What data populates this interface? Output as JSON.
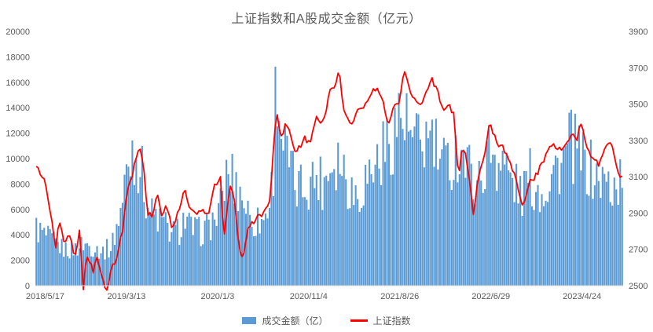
{
  "title": "上证指数和A股成交金额（亿元）",
  "chart_data": {
    "type": "bar",
    "subtype": "combo-bar-line-dual-axis",
    "title": "上证指数和A股成交金额（亿元）",
    "grid": false,
    "legend_position": "bottom",
    "samples": 300,
    "line_noise": 34,
    "bar_noise": 0.56,
    "bar_cap": 17400,
    "left_axis": {
      "min": 0,
      "max": 20000,
      "step": 2000
    },
    "right_axis": {
      "min": 2500,
      "max": 3900,
      "step": 200
    },
    "x_ticks": [
      {
        "label": "2018/5/17",
        "f": 0.0
      },
      {
        "label": "2019/3/13",
        "f": 0.155
      },
      {
        "label": "2020/1/3",
        "f": 0.31
      },
      {
        "label": "2020/11/4",
        "f": 0.465
      },
      {
        "label": "2021/8/26",
        "f": 0.62
      },
      {
        "label": "2022/6/29",
        "f": 0.775
      },
      {
        "label": "2023/4/24",
        "f": 0.93
      }
    ],
    "series": [
      {
        "name": "成交金额（亿）",
        "type": "bar",
        "axis": "left",
        "color": "#5B9BD5",
        "anchors": [
          [
            0.0,
            4600
          ],
          [
            0.016,
            3900
          ],
          [
            0.031,
            3400
          ],
          [
            0.047,
            2900
          ],
          [
            0.062,
            2800
          ],
          [
            0.082,
            3300
          ],
          [
            0.1,
            3000
          ],
          [
            0.115,
            2700
          ],
          [
            0.13,
            3100
          ],
          [
            0.14,
            5000
          ],
          [
            0.148,
            6500
          ],
          [
            0.156,
            9200
          ],
          [
            0.165,
            10800
          ],
          [
            0.177,
            9800
          ],
          [
            0.184,
            8200
          ],
          [
            0.19,
            6500
          ],
          [
            0.199,
            5600
          ],
          [
            0.21,
            5200
          ],
          [
            0.222,
            4700
          ],
          [
            0.233,
            4100
          ],
          [
            0.245,
            4400
          ],
          [
            0.253,
            5300
          ],
          [
            0.264,
            4500
          ],
          [
            0.28,
            4200
          ],
          [
            0.295,
            4700
          ],
          [
            0.31,
            5500
          ],
          [
            0.316,
            6200
          ],
          [
            0.322,
            8200
          ],
          [
            0.331,
            8800
          ],
          [
            0.34,
            8000
          ],
          [
            0.353,
            7000
          ],
          [
            0.365,
            5400
          ],
          [
            0.373,
            5000
          ],
          [
            0.389,
            5200
          ],
          [
            0.4,
            6800
          ],
          [
            0.405,
            9500
          ],
          [
            0.409,
            15500
          ],
          [
            0.412,
            16800
          ],
          [
            0.416,
            13000
          ],
          [
            0.425,
            10500
          ],
          [
            0.435,
            9000
          ],
          [
            0.442,
            7600
          ],
          [
            0.455,
            7800
          ],
          [
            0.467,
            8300
          ],
          [
            0.48,
            8600
          ],
          [
            0.49,
            8100
          ],
          [
            0.501,
            9600
          ],
          [
            0.516,
            10300
          ],
          [
            0.525,
            9200
          ],
          [
            0.537,
            7600
          ],
          [
            0.55,
            7200
          ],
          [
            0.56,
            8300
          ],
          [
            0.575,
            9300
          ],
          [
            0.59,
            10400
          ],
          [
            0.6,
            11000
          ],
          [
            0.612,
            12600
          ],
          [
            0.622,
            13400
          ],
          [
            0.635,
            12000
          ],
          [
            0.645,
            10800
          ],
          [
            0.655,
            11200
          ],
          [
            0.666,
            11400
          ],
          [
            0.675,
            11600
          ],
          [
            0.684,
            10200
          ],
          [
            0.695,
            9300
          ],
          [
            0.705,
            9700
          ],
          [
            0.715,
            10300
          ],
          [
            0.725,
            10800
          ],
          [
            0.735,
            9300
          ],
          [
            0.745,
            8700
          ],
          [
            0.755,
            8100
          ],
          [
            0.765,
            9600
          ],
          [
            0.775,
            10700
          ],
          [
            0.785,
            10100
          ],
          [
            0.796,
            9900
          ],
          [
            0.806,
            8600
          ],
          [
            0.817,
            7800
          ],
          [
            0.829,
            7200
          ],
          [
            0.84,
            8700
          ],
          [
            0.85,
            7700
          ],
          [
            0.86,
            7500
          ],
          [
            0.871,
            8100
          ],
          [
            0.88,
            8900
          ],
          [
            0.891,
            9600
          ],
          [
            0.9,
            9900
          ],
          [
            0.91,
            11200
          ],
          [
            0.921,
            10400
          ],
          [
            0.93,
            9900
          ],
          [
            0.94,
            9300
          ],
          [
            0.95,
            8700
          ],
          [
            0.96,
            8200
          ],
          [
            0.97,
            8100
          ],
          [
            0.98,
            7700
          ],
          [
            0.99,
            7900
          ],
          [
            1.0,
            8600
          ]
        ]
      },
      {
        "name": "上证指数",
        "type": "line",
        "axis": "right",
        "color": "#FF0000",
        "anchors": [
          [
            0.0,
            3190
          ],
          [
            0.008,
            3110
          ],
          [
            0.016,
            3080
          ],
          [
            0.023,
            2950
          ],
          [
            0.031,
            2780
          ],
          [
            0.036,
            2700
          ],
          [
            0.04,
            2880
          ],
          [
            0.05,
            2720
          ],
          [
            0.058,
            2780
          ],
          [
            0.067,
            2650
          ],
          [
            0.075,
            2800
          ],
          [
            0.082,
            2480
          ],
          [
            0.087,
            2670
          ],
          [
            0.098,
            2580
          ],
          [
            0.106,
            2650
          ],
          [
            0.12,
            2450
          ],
          [
            0.129,
            2580
          ],
          [
            0.14,
            2680
          ],
          [
            0.148,
            2800
          ],
          [
            0.156,
            3020
          ],
          [
            0.163,
            3090
          ],
          [
            0.171,
            3190
          ],
          [
            0.177,
            3270
          ],
          [
            0.184,
            3150
          ],
          [
            0.19,
            2910
          ],
          [
            0.199,
            2870
          ],
          [
            0.207,
            3000
          ],
          [
            0.215,
            2890
          ],
          [
            0.222,
            2950
          ],
          [
            0.233,
            2820
          ],
          [
            0.241,
            2880
          ],
          [
            0.253,
            3030
          ],
          [
            0.264,
            2920
          ],
          [
            0.28,
            2900
          ],
          [
            0.295,
            2910
          ],
          [
            0.306,
            3060
          ],
          [
            0.316,
            3090
          ],
          [
            0.32,
            2750
          ],
          [
            0.331,
            3050
          ],
          [
            0.339,
            2970
          ],
          [
            0.347,
            2700
          ],
          [
            0.353,
            2660
          ],
          [
            0.362,
            2820
          ],
          [
            0.373,
            2860
          ],
          [
            0.389,
            2900
          ],
          [
            0.4,
            2980
          ],
          [
            0.407,
            3340
          ],
          [
            0.411,
            3450
          ],
          [
            0.417,
            3310
          ],
          [
            0.425,
            3380
          ],
          [
            0.432,
            3350
          ],
          [
            0.442,
            3220
          ],
          [
            0.451,
            3270
          ],
          [
            0.459,
            3320
          ],
          [
            0.467,
            3270
          ],
          [
            0.477,
            3420
          ],
          [
            0.49,
            3400
          ],
          [
            0.501,
            3570
          ],
          [
            0.51,
            3600
          ],
          [
            0.516,
            3700
          ],
          [
            0.523,
            3500
          ],
          [
            0.532,
            3420
          ],
          [
            0.537,
            3370
          ],
          [
            0.547,
            3480
          ],
          [
            0.56,
            3480
          ],
          [
            0.568,
            3550
          ],
          [
            0.58,
            3590
          ],
          [
            0.591,
            3530
          ],
          [
            0.6,
            3380
          ],
          [
            0.61,
            3480
          ],
          [
            0.619,
            3520
          ],
          [
            0.627,
            3700
          ],
          [
            0.635,
            3590
          ],
          [
            0.642,
            3550
          ],
          [
            0.653,
            3480
          ],
          [
            0.663,
            3560
          ],
          [
            0.673,
            3640
          ],
          [
            0.684,
            3580
          ],
          [
            0.694,
            3460
          ],
          [
            0.703,
            3490
          ],
          [
            0.712,
            3450
          ],
          [
            0.72,
            3070
          ],
          [
            0.725,
            3250
          ],
          [
            0.734,
            3200
          ],
          [
            0.745,
            2880
          ],
          [
            0.753,
            3080
          ],
          [
            0.762,
            3180
          ],
          [
            0.773,
            3400
          ],
          [
            0.785,
            3280
          ],
          [
            0.796,
            3270
          ],
          [
            0.806,
            3180
          ],
          [
            0.817,
            3100
          ],
          [
            0.829,
            2920
          ],
          [
            0.84,
            3080
          ],
          [
            0.849,
            3090
          ],
          [
            0.86,
            3160
          ],
          [
            0.871,
            3240
          ],
          [
            0.88,
            3290
          ],
          [
            0.891,
            3250
          ],
          [
            0.902,
            3280
          ],
          [
            0.913,
            3350
          ],
          [
            0.921,
            3300
          ],
          [
            0.928,
            3400
          ],
          [
            0.938,
            3250
          ],
          [
            0.949,
            3200
          ],
          [
            0.958,
            3170
          ],
          [
            0.969,
            3260
          ],
          [
            0.98,
            3280
          ],
          [
            0.988,
            3180
          ],
          [
            0.995,
            3100
          ],
          [
            1.0,
            3130
          ]
        ]
      }
    ]
  },
  "legend": {
    "volume_label": "成交金额（亿）",
    "index_label": "上证指数"
  }
}
